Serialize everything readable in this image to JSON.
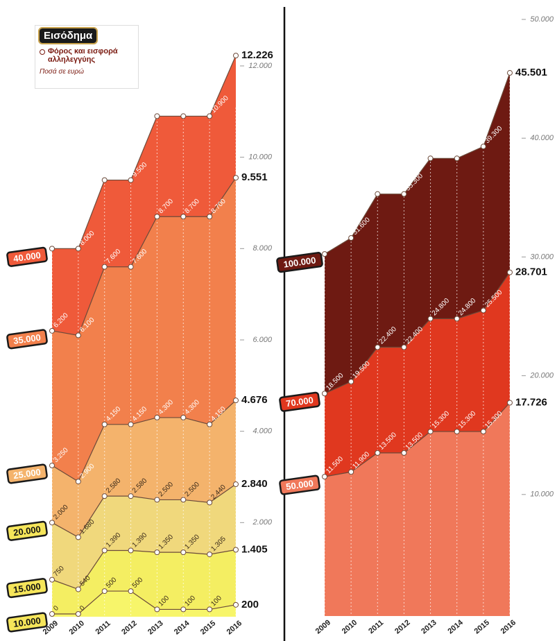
{
  "chart_data": [
    {
      "type": "area",
      "legend_title": "Εισόδημα",
      "subtitle": "Φόρος και εισφορά αλληλεγγύης",
      "note": "Ποσά σε ευρώ",
      "categories": [
        "2009",
        "2010",
        "2011",
        "2012",
        "2013",
        "2014",
        "2015",
        "2016"
      ],
      "ylim": [
        0,
        12000
      ],
      "yticks": [
        {
          "value": 2000,
          "label": "2.000"
        },
        {
          "value": 4000,
          "label": "4.000"
        },
        {
          "value": 6000,
          "label": "6.000"
        },
        {
          "value": 8000,
          "label": "8.000"
        },
        {
          "value": 10000,
          "label": "10.000"
        },
        {
          "value": 12000,
          "label": "12.000"
        }
      ],
      "series": [
        {
          "name": "40.000",
          "color": "#ef5a3a",
          "values": [
            8000,
            8000,
            9500,
            9500,
            10900,
            10900,
            10900,
            12226
          ],
          "value_labels": [
            "8.000",
            "8.000",
            "9.500",
            "9.500",
            "10.900",
            "10.900",
            "10.900",
            "12.226"
          ]
        },
        {
          "name": "35.000",
          "color": "#f2804c",
          "values": [
            6200,
            6100,
            7600,
            7600,
            8700,
            8700,
            8700,
            9551
          ],
          "value_labels": [
            "6.200",
            "6.100",
            "7.600",
            "7.600",
            "8.700",
            "8.700",
            "8.700",
            "9.551"
          ]
        },
        {
          "name": "25.000",
          "color": "#f4b36c",
          "values": [
            3250,
            2900,
            4150,
            4150,
            4300,
            4300,
            4150,
            4676
          ],
          "value_labels": [
            "3.250",
            "2.900",
            "4.150",
            "4.150",
            "4.300",
            "4.300",
            "4.150",
            "4.676"
          ]
        },
        {
          "name": "20.000",
          "color": "#f0d87c",
          "values": [
            2000,
            1680,
            2580,
            2580,
            2500,
            2500,
            2440,
            2840
          ],
          "value_labels": [
            "2.000",
            "1.680",
            "2.580",
            "2.580",
            "2.500",
            "2.500",
            "2.440",
            "2.840"
          ]
        },
        {
          "name": "15.000",
          "color": "#f4ee62",
          "values": [
            750,
            540,
            1390,
            1390,
            1350,
            1350,
            1305,
            1405
          ],
          "value_labels": [
            "750",
            "540",
            "1.390",
            "1.390",
            "1.350",
            "1.350",
            "1.305",
            "1.405"
          ]
        },
        {
          "name": "10.000",
          "color": "#f7f56a",
          "values": [
            0,
            0,
            500,
            500,
            100,
            100,
            100,
            200
          ]
        }
      ]
    },
    {
      "type": "area",
      "categories": [
        "2009",
        "2010",
        "2011",
        "2012",
        "2013",
        "2014",
        "2015",
        "2016"
      ],
      "ylim": [
        0,
        50000
      ],
      "yticks": [
        {
          "value": 10000,
          "label": "10.000"
        },
        {
          "value": 20000,
          "label": "20.000"
        },
        {
          "value": 30000,
          "label": "30.000"
        },
        {
          "value": 40000,
          "label": "40.000"
        },
        {
          "value": 50000,
          "label": "50.000"
        }
      ],
      "series": [
        {
          "name": "100.000",
          "color": "#6e1a12",
          "values": [
            30250,
            31600,
            35300,
            35300,
            38300,
            38300,
            39300,
            45501
          ],
          "value_labels": [
            "30.250",
            "31.600",
            "35.300",
            "35.300",
            "38.300",
            "38.300",
            "39.300",
            "45.501"
          ]
        },
        {
          "name": "70.000",
          "color": "#e0381f",
          "values": [
            18500,
            19500,
            22400,
            22400,
            24800,
            24800,
            25500,
            28701
          ],
          "value_labels": [
            "18.500",
            "19.500",
            "22.400",
            "22.400",
            "24.800",
            "24.800",
            "25.500",
            "28.701"
          ]
        },
        {
          "name": "50.000",
          "color": "#f0785a",
          "values": [
            11500,
            11900,
            13500,
            13500,
            15300,
            15300,
            15300,
            17726
          ],
          "value_labels": [
            "11.500",
            "11.900",
            "13.500",
            "13.500",
            "15.300",
            "15.300",
            "15.300",
            "17.726"
          ]
        }
      ]
    }
  ]
}
